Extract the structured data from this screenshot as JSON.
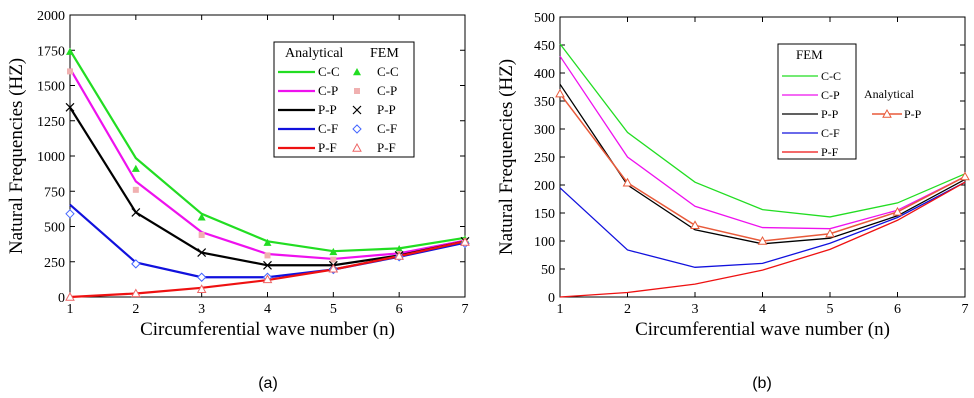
{
  "chart_data": [
    {
      "type": "line",
      "panel_label": "(a)",
      "xlabel": "Circumferential wave number (n)",
      "ylabel": "Natural Frequencies (HZ)",
      "xlim": [
        1,
        7
      ],
      "ylim": [
        0,
        2000
      ],
      "x_ticks": [
        1,
        2,
        3,
        4,
        5,
        6,
        7
      ],
      "y_ticks": [
        0,
        250,
        500,
        750,
        1000,
        1250,
        1500,
        1750,
        2000
      ],
      "grid": false,
      "legend_placement": "top-right",
      "legend_headers": [
        "Analytical",
        "FEM"
      ],
      "x": [
        1,
        2,
        3,
        4,
        5,
        6,
        7
      ],
      "series": [
        {
          "name": "C-C",
          "color": "#22dd22",
          "marker": "triangle-filled",
          "analytical": [
            1750,
            985,
            590,
            395,
            325,
            345,
            420
          ],
          "fem": [
            1740,
            910,
            565,
            385,
            320,
            340,
            410
          ]
        },
        {
          "name": "C-P",
          "color": "#ee11ee",
          "fem_color": "#f0b0b0",
          "marker": "square-filled",
          "analytical": [
            1620,
            820,
            460,
            305,
            270,
            310,
            400
          ],
          "fem": [
            1600,
            760,
            440,
            295,
            265,
            305,
            395
          ]
        },
        {
          "name": "P-P",
          "color": "#000000",
          "marker": "x",
          "analytical": [
            1345,
            600,
            315,
            225,
            225,
            295,
            395
          ],
          "fem": [
            1345,
            600,
            315,
            225,
            225,
            295,
            395
          ]
        },
        {
          "name": "C-F",
          "color": "#1111dd",
          "fem_color": "#4466ff",
          "marker": "diamond-open",
          "analytical": [
            655,
            245,
            140,
            140,
            195,
            285,
            385
          ],
          "fem": [
            590,
            235,
            140,
            140,
            195,
            285,
            380
          ]
        },
        {
          "name": "P-F",
          "color": "#ee1111",
          "fem_color": "#ee6666",
          "marker": "triangle-open",
          "analytical": [
            0,
            25,
            65,
            120,
            195,
            290,
            395
          ],
          "fem": [
            0,
            25,
            55,
            125,
            200,
            290,
            390
          ]
        }
      ]
    },
    {
      "type": "line",
      "panel_label": "(b)",
      "xlabel": "Circumferential wave number (n)",
      "ylabel": "Natural Frequencies (HZ)",
      "xlim": [
        1,
        7
      ],
      "ylim": [
        0,
        500
      ],
      "x_ticks": [
        1,
        2,
        3,
        4,
        5,
        6,
        7
      ],
      "y_ticks": [
        0,
        50,
        100,
        150,
        200,
        250,
        300,
        350,
        400,
        450,
        500
      ],
      "grid": false,
      "legend_placement": "top-right",
      "legend_header": "FEM",
      "analytical_label": "Analytical",
      "x": [
        1,
        2,
        3,
        4,
        5,
        6,
        7
      ],
      "series": [
        {
          "name": "C-C",
          "color": "#22dd22",
          "values": [
            452,
            294,
            205,
            156,
            143,
            168,
            220
          ]
        },
        {
          "name": "C-P",
          "color": "#ee11ee",
          "values": [
            430,
            250,
            162,
            124,
            122,
            155,
            215
          ]
        },
        {
          "name": "P-P",
          "color": "#000000",
          "values": [
            380,
            200,
            120,
            95,
            105,
            145,
            210
          ]
        },
        {
          "name": "C-F",
          "color": "#1111dd",
          "values": [
            195,
            84,
            53,
            60,
            96,
            142,
            205
          ]
        },
        {
          "name": "P-F",
          "color": "#ee1111",
          "values": [
            0,
            8,
            23,
            48,
            85,
            137,
            205
          ]
        }
      ],
      "analytical_series": {
        "name": "P-P",
        "color": "#e85a3a",
        "marker": "triangle-open",
        "values": [
          363,
          204,
          128,
          100,
          113,
          152,
          215
        ]
      }
    }
  ]
}
